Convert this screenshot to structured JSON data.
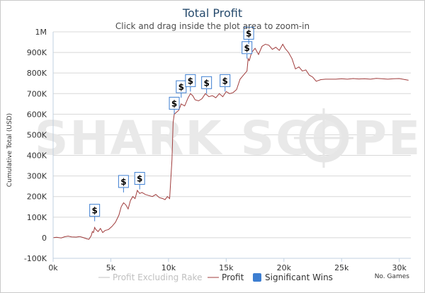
{
  "chart_data": {
    "type": "line",
    "title": "Total Profit",
    "subtitle": "Click and drag inside the plot area to zoom-in",
    "ylabel": "Cumulative Total (USD)",
    "xlabel": "No. Games",
    "watermark": "SHARK SCOPE",
    "xlim": [
      0,
      31000
    ],
    "ylim": [
      -100000,
      1000000
    ],
    "x_ticks": [
      0,
      5000,
      10000,
      15000,
      20000,
      25000,
      30000
    ],
    "x_tick_labels": [
      "0k",
      "5k",
      "10k",
      "15k",
      "20k",
      "25k",
      "30k"
    ],
    "y_ticks": [
      -100000,
      0,
      100000,
      200000,
      300000,
      400000,
      500000,
      600000,
      700000,
      800000,
      900000,
      1000000
    ],
    "y_tick_labels": [
      "-100K",
      "0",
      "100K",
      "200K",
      "300K",
      "400K",
      "500K",
      "600K",
      "700K",
      "800K",
      "900K",
      "1M"
    ],
    "grid": "horizontal",
    "legend_position": "bottom",
    "legend": [
      {
        "label": "Profit Excluding Rake",
        "kind": "line",
        "color": "#c0c0c0",
        "disabled": true
      },
      {
        "label": "Profit",
        "kind": "line",
        "color": "#a03c3c",
        "disabled": false
      },
      {
        "label": "Significant Wins",
        "kind": "box",
        "color": "#3d7ed1",
        "disabled": false
      }
    ],
    "series": [
      {
        "name": "Profit",
        "color": "#a03c3c",
        "x": [
          0,
          300,
          700,
          1000,
          1300,
          1600,
          2000,
          2300,
          2600,
          2900,
          3100,
          3300,
          3400,
          3500,
          3600,
          3700,
          3900,
          4100,
          4300,
          4500,
          4800,
          5100,
          5400,
          5700,
          5900,
          6100,
          6300,
          6500,
          6700,
          6900,
          7100,
          7300,
          7500,
          7700,
          8000,
          8300,
          8600,
          8900,
          9200,
          9500,
          9700,
          9900,
          10100,
          10300,
          10400,
          10450,
          10500,
          10700,
          10900,
          11100,
          11400,
          11700,
          11900,
          12100,
          12300,
          12600,
          12900,
          13200,
          13500,
          13800,
          14100,
          14400,
          14700,
          15000,
          15300,
          15600,
          15900,
          16200,
          16500,
          16800,
          16900,
          17000,
          17200,
          17500,
          17800,
          18100,
          18400,
          18700,
          19000,
          19300,
          19600,
          19900,
          20100,
          20400,
          20700,
          21000,
          21300,
          21600,
          21900,
          22200,
          22500,
          22800,
          23200,
          23600,
          24000,
          24500,
          25000,
          25500,
          26000,
          26500,
          27000,
          27500,
          28000,
          28500,
          29000,
          29500,
          30000,
          30500,
          30800
        ],
        "y": [
          0,
          2000,
          -1000,
          5000,
          8000,
          4000,
          3000,
          6000,
          1000,
          -5000,
          -8000,
          10000,
          30000,
          25000,
          50000,
          40000,
          30000,
          45000,
          25000,
          35000,
          40000,
          55000,
          75000,
          110000,
          150000,
          170000,
          160000,
          140000,
          180000,
          200000,
          190000,
          230000,
          215000,
          220000,
          210000,
          205000,
          200000,
          210000,
          195000,
          190000,
          185000,
          200000,
          190000,
          380000,
          560000,
          580000,
          600000,
          610000,
          620000,
          650000,
          640000,
          680000,
          700000,
          690000,
          670000,
          665000,
          675000,
          700000,
          685000,
          690000,
          680000,
          700000,
          685000,
          710000,
          700000,
          705000,
          720000,
          770000,
          790000,
          810000,
          870000,
          860000,
          900000,
          920000,
          890000,
          930000,
          940000,
          935000,
          915000,
          925000,
          910000,
          940000,
          920000,
          900000,
          870000,
          820000,
          830000,
          810000,
          815000,
          790000,
          780000,
          760000,
          768000,
          770000,
          770000,
          770000,
          772000,
          770000,
          773000,
          771000,
          772000,
          770000,
          774000,
          772000,
          770000,
          772000,
          773000,
          768000,
          765000
        ]
      },
      {
        "name": "Significant Wins",
        "kind": "flags",
        "color": "#3d7ed1",
        "label": "$",
        "x": [
          3600,
          6100,
          7500,
          10500,
          11100,
          11900,
          13300,
          14900,
          16800,
          16950
        ],
        "y": [
          80000,
          220000,
          235000,
          600000,
          680000,
          710000,
          700000,
          710000,
          870000,
          940000
        ]
      }
    ]
  }
}
